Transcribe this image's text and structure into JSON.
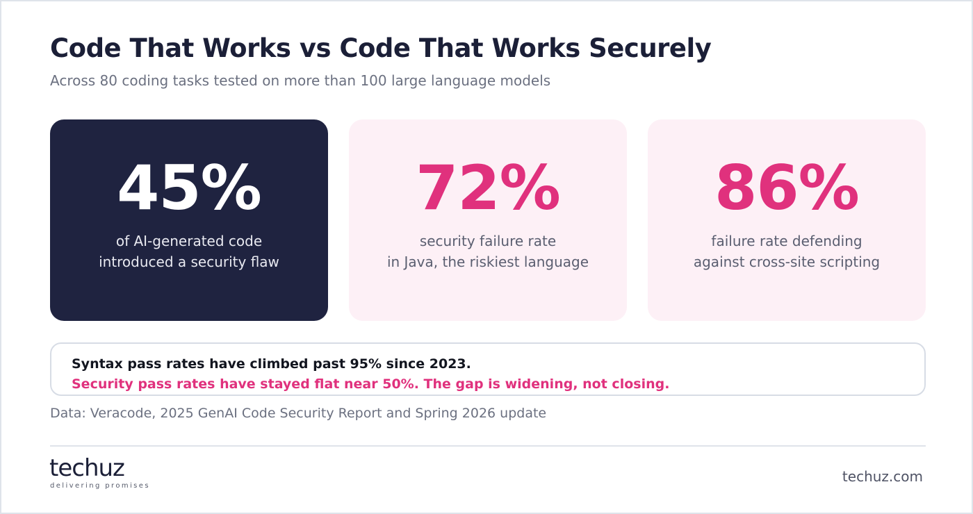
{
  "header": {
    "title": "Code That Works vs Code That Works Securely",
    "subtitle": "Across 80 coding tasks tested on more than 100 large language models"
  },
  "stats": [
    {
      "value": "45%",
      "line1": "of AI-generated code",
      "line2": "introduced a security flaw"
    },
    {
      "value": "72%",
      "line1": "security failure rate",
      "line2": "in Java, the riskiest language"
    },
    {
      "value": "86%",
      "line1": "failure rate defending",
      "line2": "against cross-site scripting"
    }
  ],
  "callout": {
    "line1": "Syntax pass rates have climbed past 95% since 2023.",
    "line2": "Security pass rates have stayed flat near 50%. The gap is widening, not closing."
  },
  "source": "Data: Veracode, 2025 GenAI Code Security Report and Spring 2026 update",
  "footer": {
    "logo_name": "techuz",
    "logo_tagline": "delivering promises",
    "site": "techuz.com"
  },
  "colors": {
    "dark_card": "#1f2340",
    "accent_pink": "#e0317d",
    "pink_card": "#fdf0f6",
    "title_text": "#1b1f37"
  }
}
